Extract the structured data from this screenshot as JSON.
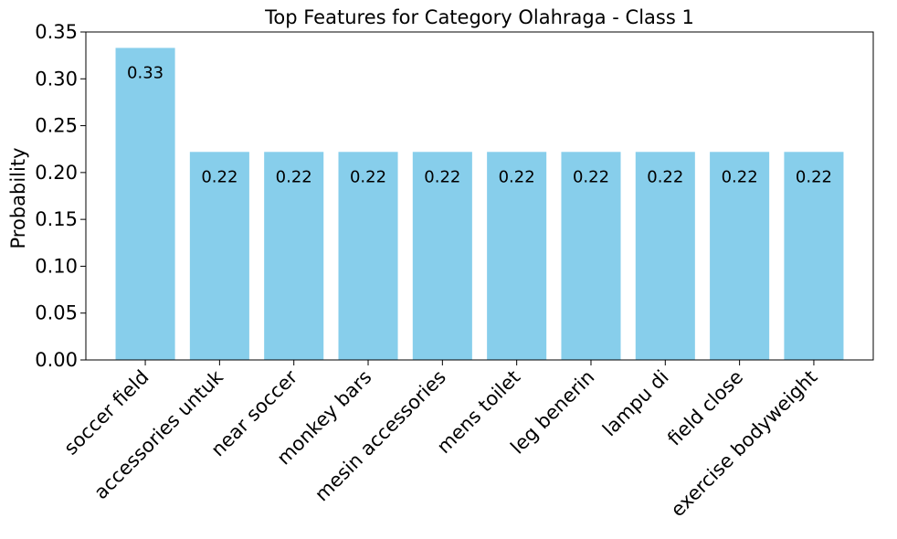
{
  "chart_data": {
    "type": "bar",
    "title": "Top Features for Category Olahraga - Class 1",
    "xlabel": "",
    "ylabel": "Probability",
    "categories": [
      "soccer field",
      "accessories untuk",
      "near soccer",
      "monkey bars",
      "mesin accessories",
      "mens toilet",
      "leg benerin",
      "lampu di",
      "field close",
      "exercise bodyweight"
    ],
    "values": [
      0.333,
      0.222,
      0.222,
      0.222,
      0.222,
      0.222,
      0.222,
      0.222,
      0.222,
      0.222
    ],
    "value_labels": [
      "0.33",
      "0.22",
      "0.22",
      "0.22",
      "0.22",
      "0.22",
      "0.22",
      "0.22",
      "0.22",
      "0.22"
    ],
    "ylim": [
      0,
      0.35
    ],
    "yticks": [
      "0.00",
      "0.05",
      "0.10",
      "0.15",
      "0.20",
      "0.25",
      "0.30",
      "0.35"
    ],
    "bar_color": "#87CEEB",
    "grid": false,
    "legend": "none"
  }
}
